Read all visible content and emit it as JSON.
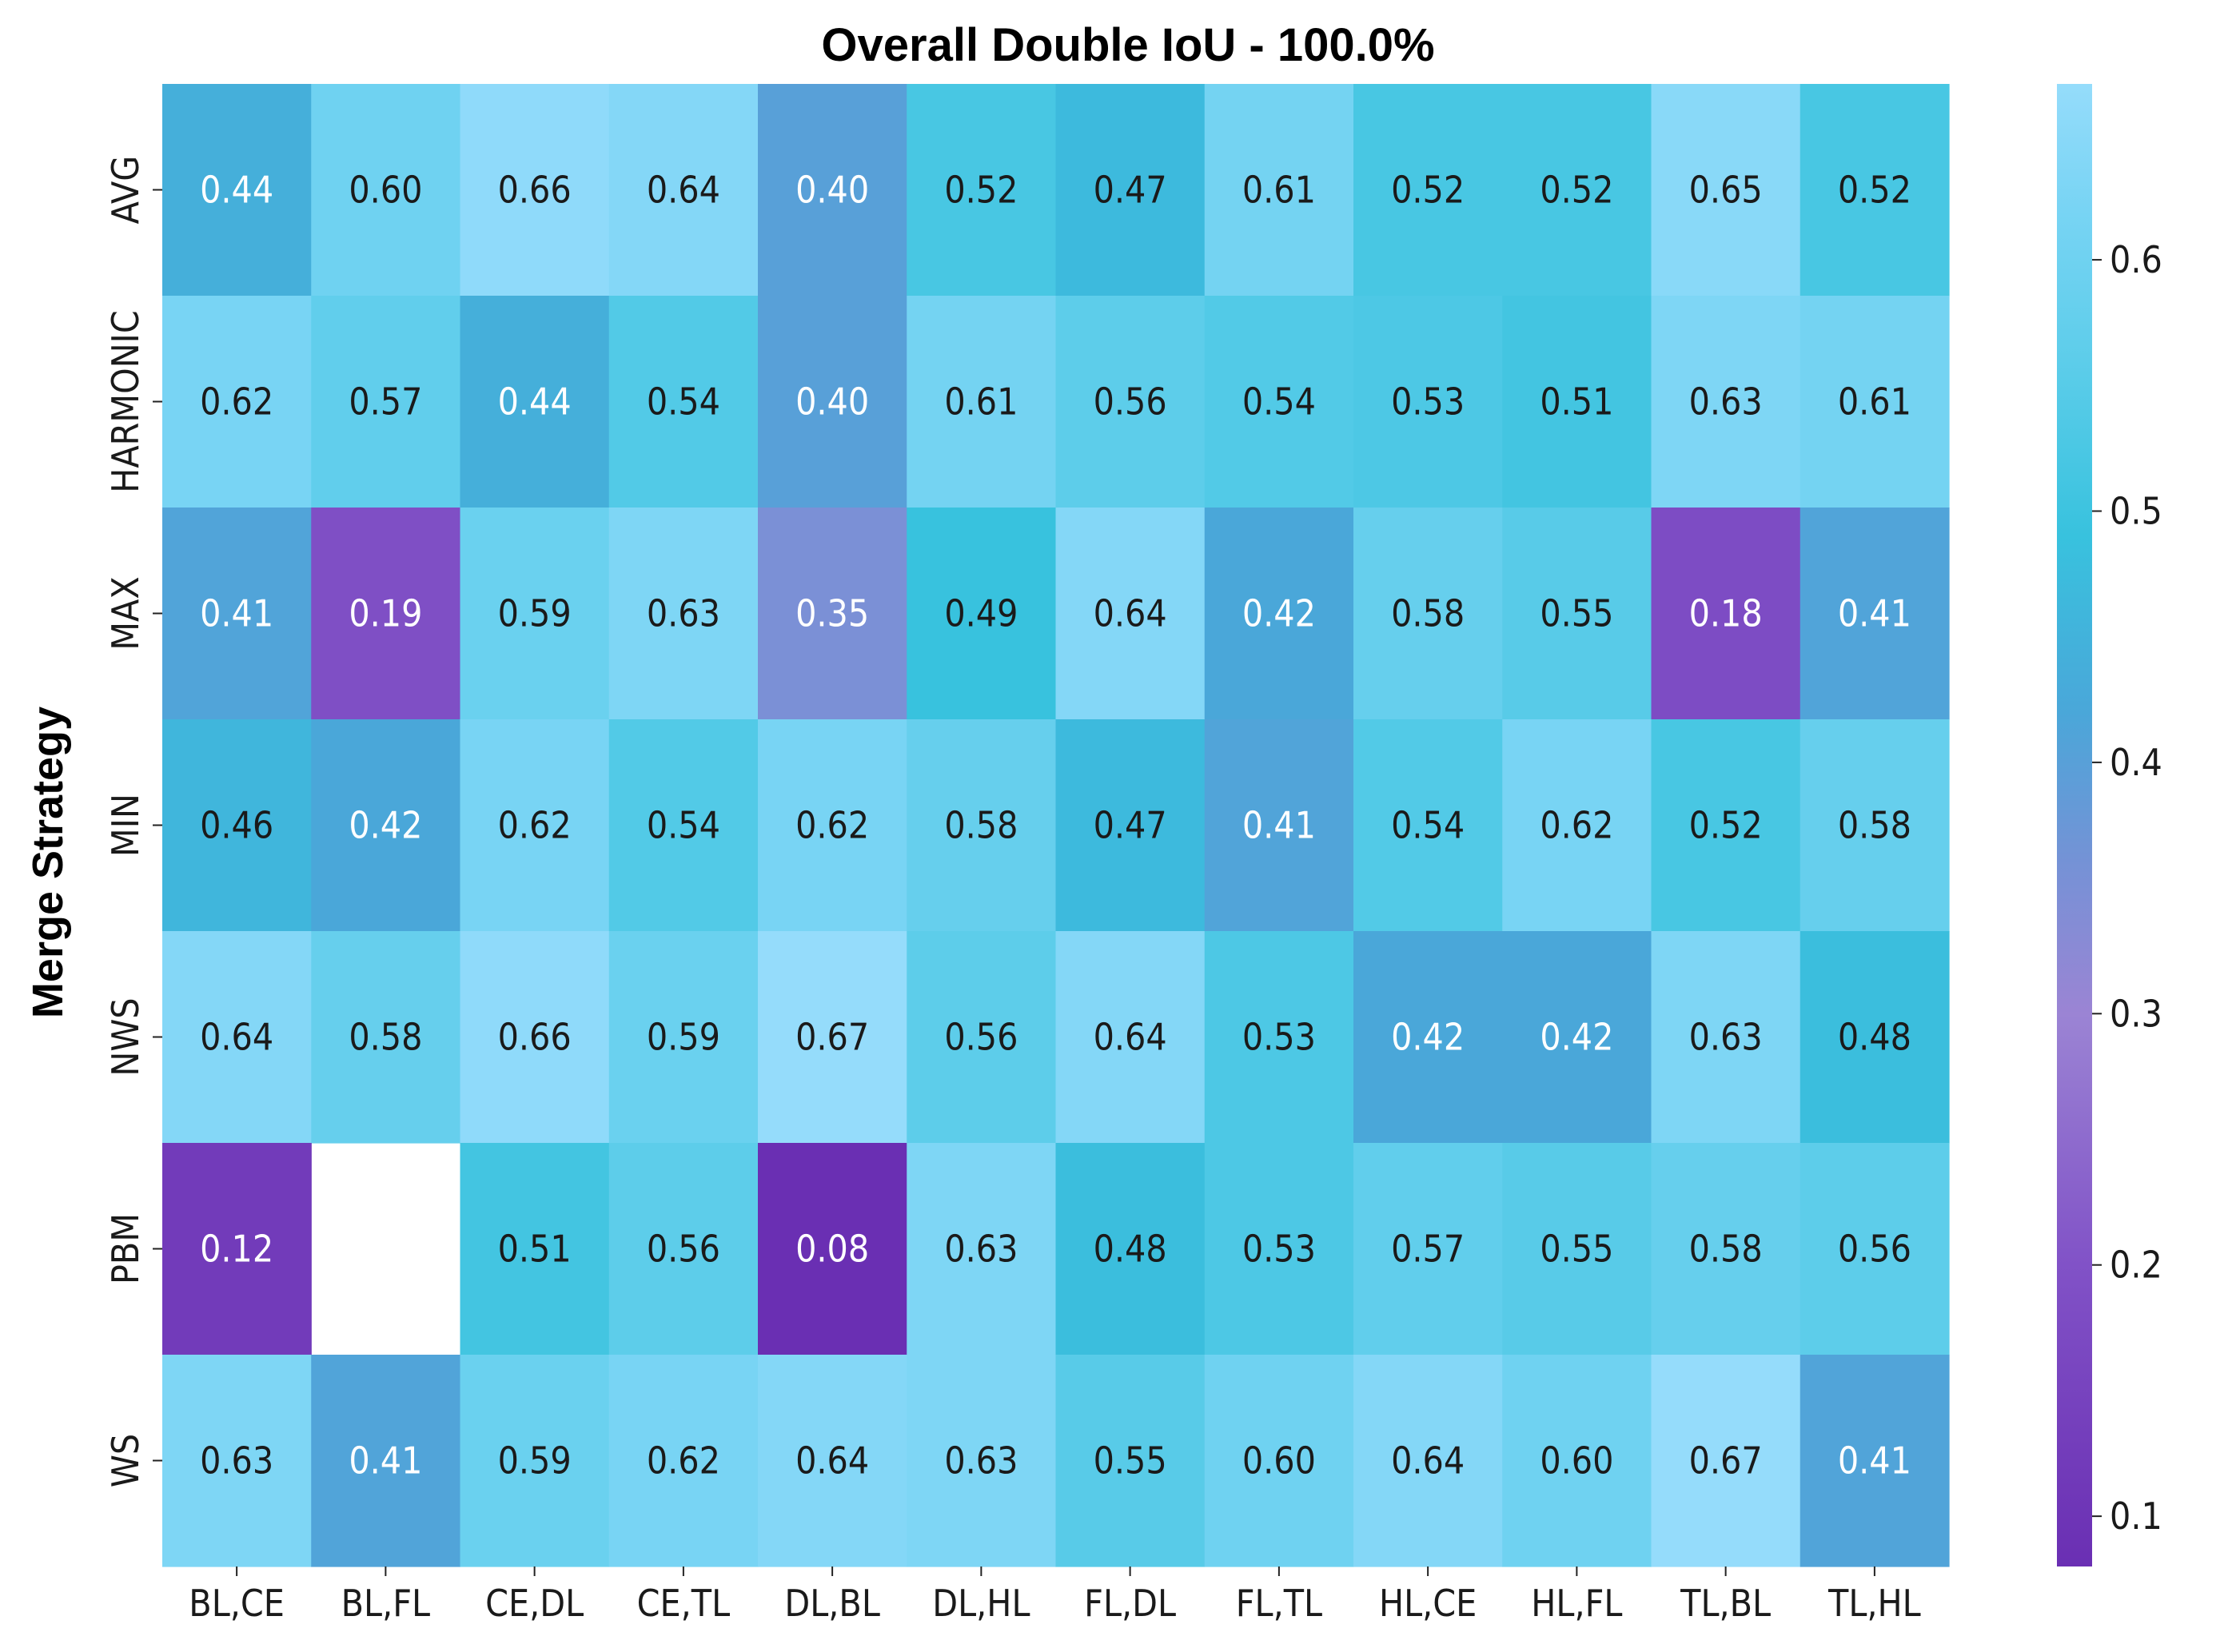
{
  "chart_data": {
    "type": "heatmap",
    "title": "Overall Double IoU - 100.0%",
    "xlabel": "",
    "ylabel": "Merge Strategy",
    "x_categories": [
      "BL,CE",
      "BL,FL",
      "CE,DL",
      "CE,TL",
      "DL,BL",
      "DL,HL",
      "FL,DL",
      "FL,TL",
      "HL,CE",
      "HL,FL",
      "TL,BL",
      "TL,HL"
    ],
    "y_categories": [
      "AVG",
      "HARMONIC",
      "MAX",
      "MIN",
      "NWS",
      "PBM",
      "WS"
    ],
    "values": [
      [
        0.44,
        0.6,
        0.66,
        0.64,
        0.4,
        0.52,
        0.47,
        0.61,
        0.52,
        0.52,
        0.65,
        0.52
      ],
      [
        0.62,
        0.57,
        0.44,
        0.54,
        0.4,
        0.61,
        0.56,
        0.54,
        0.53,
        0.51,
        0.63,
        0.61
      ],
      [
        0.41,
        0.19,
        0.59,
        0.63,
        0.35,
        0.49,
        0.64,
        0.42,
        0.58,
        0.55,
        0.18,
        0.41
      ],
      [
        0.46,
        0.42,
        0.62,
        0.54,
        0.62,
        0.58,
        0.47,
        0.41,
        0.54,
        0.62,
        0.52,
        0.58
      ],
      [
        0.64,
        0.58,
        0.66,
        0.59,
        0.67,
        0.56,
        0.64,
        0.53,
        0.42,
        0.42,
        0.63,
        0.48
      ],
      [
        0.12,
        null,
        0.51,
        0.56,
        0.08,
        0.63,
        0.48,
        0.53,
        0.57,
        0.55,
        0.58,
        0.56
      ],
      [
        0.63,
        0.41,
        0.59,
        0.62,
        0.64,
        0.63,
        0.55,
        0.6,
        0.64,
        0.6,
        0.67,
        0.41
      ]
    ],
    "colorbar": {
      "range": [
        0.08,
        0.67
      ],
      "ticks": [
        "0.1",
        "0.2",
        "0.3",
        "0.4",
        "0.5",
        "0.6"
      ],
      "colormap": [
        {
          "v": 0.08,
          "color": "#6a2fb3"
        },
        {
          "v": 0.2,
          "color": "#8152c7"
        },
        {
          "v": 0.3,
          "color": "#9b84d4"
        },
        {
          "v": 0.36,
          "color": "#7592d6"
        },
        {
          "v": 0.42,
          "color": "#4aa7d9"
        },
        {
          "v": 0.49,
          "color": "#38c2de"
        },
        {
          "v": 0.56,
          "color": "#5dcdea"
        },
        {
          "v": 0.62,
          "color": "#78d4f4"
        },
        {
          "v": 0.67,
          "color": "#95dcfb"
        }
      ],
      "light_text_below": 0.45
    }
  }
}
